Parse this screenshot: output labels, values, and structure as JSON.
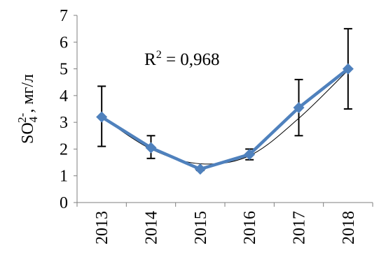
{
  "chart_data": {
    "type": "line",
    "categories": [
      "2013",
      "2014",
      "2015",
      "2016",
      "2017",
      "2018"
    ],
    "series": [
      {
        "values": [
          3.2,
          2.05,
          1.25,
          1.8,
          3.55,
          5.0
        ],
        "error_low": [
          2.1,
          1.65,
          1.2,
          1.6,
          2.5,
          3.5
        ],
        "error_high": [
          4.35,
          2.5,
          1.3,
          2.0,
          4.6,
          6.5
        ],
        "color": "#4f81bd",
        "marker": "diamond"
      }
    ],
    "trendline": {
      "type": "polynomial",
      "order": 2,
      "values": [
        3.2,
        2.0,
        1.45,
        1.75,
        3.15,
        4.95
      ],
      "color": "#000000"
    },
    "ylabel": {
      "base": "SO",
      "sub": "4",
      "sup": "2-",
      "unit": ", мг/л"
    },
    "annotation": {
      "base": "R",
      "sup": "2",
      "rest": " = 0,968"
    },
    "ylim": [
      0,
      7
    ],
    "yticks": [
      0,
      1,
      2,
      3,
      4,
      5,
      6,
      7
    ],
    "grid": false,
    "legend": "none"
  }
}
